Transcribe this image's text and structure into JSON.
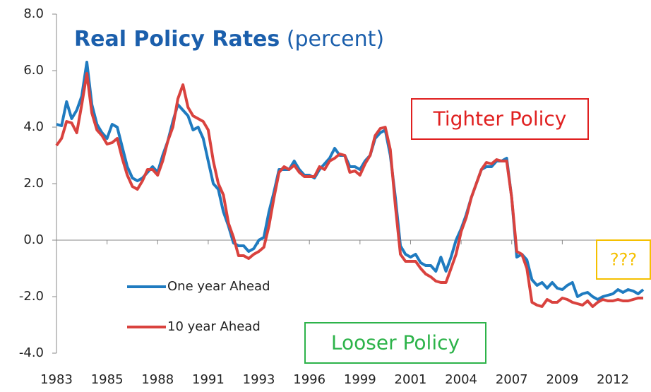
{
  "chart_data": {
    "type": "line",
    "title": "Real Policy Rates",
    "subtitle": "(percent)",
    "categories": [
      "1983",
      null,
      null,
      null,
      null,
      null,
      null,
      null,
      null,
      null,
      "1985",
      null,
      null,
      null,
      null,
      null,
      null,
      null,
      null,
      null,
      "1988",
      null,
      null,
      null,
      null,
      null,
      null,
      null,
      null,
      null,
      "1991",
      null,
      null,
      null,
      null,
      null,
      null,
      null,
      null,
      null,
      "1993",
      null,
      null,
      null,
      null,
      null,
      null,
      null,
      null,
      null,
      "1996",
      null,
      null,
      null,
      null,
      null,
      null,
      null,
      null,
      null,
      "1999",
      null,
      null,
      null,
      null,
      null,
      null,
      null,
      null,
      null,
      "2001",
      null,
      null,
      null,
      null,
      null,
      null,
      null,
      null,
      null,
      "2004",
      null,
      null,
      null,
      null,
      null,
      null,
      null,
      null,
      null,
      "2007",
      null,
      null,
      null,
      null,
      null,
      null,
      null,
      null,
      null,
      "2009",
      null,
      null,
      null,
      null,
      null,
      null,
      null,
      null,
      null,
      "2012",
      null,
      null,
      null,
      null,
      null,
      null
    ],
    "series": [
      {
        "name": "One year Ahead",
        "color": "#1f7bc0",
        "values": [
          4.1,
          4.05,
          4.9,
          4.3,
          4.6,
          5.1,
          6.3,
          4.8,
          4.1,
          3.8,
          3.6,
          4.1,
          4.0,
          3.3,
          2.6,
          2.2,
          2.1,
          2.2,
          2.4,
          2.6,
          2.4,
          3.0,
          3.5,
          4.2,
          4.8,
          4.6,
          4.4,
          3.9,
          4.0,
          3.6,
          2.8,
          2.0,
          1.8,
          1.0,
          0.5,
          -0.1,
          -0.2,
          -0.2,
          -0.4,
          -0.3,
          0.0,
          0.1,
          1.0,
          1.7,
          2.5,
          2.5,
          2.5,
          2.8,
          2.5,
          2.3,
          2.3,
          2.2,
          2.5,
          2.7,
          2.9,
          3.25,
          3.0,
          3.0,
          2.6,
          2.6,
          2.5,
          2.8,
          3.0,
          3.6,
          3.8,
          3.9,
          3.0,
          1.5,
          -0.2,
          -0.5,
          -0.6,
          -0.5,
          -0.8,
          -0.9,
          -0.9,
          -1.1,
          -0.6,
          -1.1,
          -0.6,
          0.0,
          0.4,
          0.9,
          1.5,
          2.0,
          2.5,
          2.6,
          2.6,
          2.8,
          2.8,
          2.9,
          1.5,
          -0.6,
          -0.5,
          -0.7,
          -1.4,
          -1.6,
          -1.5,
          -1.7,
          -1.5,
          -1.7,
          -1.75,
          -1.6,
          -1.5,
          -2.0,
          -1.9,
          -1.85,
          -2.0,
          -2.1,
          -2.0,
          -1.95,
          -1.9,
          -1.75,
          -1.85,
          -1.75,
          -1.8,
          -1.9,
          -1.75
        ]
      },
      {
        "name": "10 year Ahead",
        "color": "#d9423e",
        "values": [
          3.35,
          3.6,
          4.2,
          4.15,
          3.8,
          4.8,
          5.9,
          4.5,
          3.9,
          3.7,
          3.4,
          3.45,
          3.6,
          2.9,
          2.3,
          1.9,
          1.8,
          2.1,
          2.5,
          2.5,
          2.3,
          2.8,
          3.5,
          4.0,
          5.0,
          5.5,
          4.7,
          4.4,
          4.3,
          4.2,
          3.9,
          2.8,
          2.0,
          1.6,
          0.6,
          0.1,
          -0.55,
          -0.55,
          -0.65,
          -0.5,
          -0.4,
          -0.25,
          0.5,
          1.5,
          2.4,
          2.6,
          2.5,
          2.65,
          2.4,
          2.25,
          2.25,
          2.25,
          2.6,
          2.5,
          2.8,
          2.9,
          3.05,
          3.0,
          2.4,
          2.45,
          2.3,
          2.7,
          3.0,
          3.7,
          3.95,
          4.0,
          3.2,
          1.2,
          -0.5,
          -0.75,
          -0.75,
          -0.75,
          -1.0,
          -1.2,
          -1.3,
          -1.45,
          -1.5,
          -1.5,
          -1.0,
          -0.5,
          0.3,
          0.8,
          1.5,
          2.0,
          2.5,
          2.75,
          2.7,
          2.85,
          2.8,
          2.8,
          1.5,
          -0.4,
          -0.5,
          -1.0,
          -2.2,
          -2.3,
          -2.35,
          -2.1,
          -2.2,
          -2.2,
          -2.05,
          -2.1,
          -2.2,
          -2.25,
          -2.3,
          -2.15,
          -2.35,
          -2.2,
          -2.1,
          -2.15,
          -2.15,
          -2.1,
          -2.15,
          -2.15,
          -2.1,
          -2.05,
          -2.05
        ]
      }
    ],
    "ylim": [
      -4,
      8
    ],
    "yticks": [
      {
        "value": -4,
        "label": "-4.0"
      },
      {
        "value": -2,
        "label": "-2.0"
      },
      {
        "value": 0,
        "label": "0.0"
      },
      {
        "value": 2,
        "label": "2.0"
      },
      {
        "value": 4,
        "label": "4.0"
      },
      {
        "value": 6,
        "label": "6.0"
      },
      {
        "value": 8,
        "label": "8.0"
      }
    ],
    "grid": false,
    "annotations": [
      {
        "text": "Tighter Policy",
        "color": "#e02020"
      },
      {
        "text": "Looser Policy",
        "color": "#2db34a"
      },
      {
        "text": "???",
        "color": "#f5c000"
      }
    ]
  }
}
